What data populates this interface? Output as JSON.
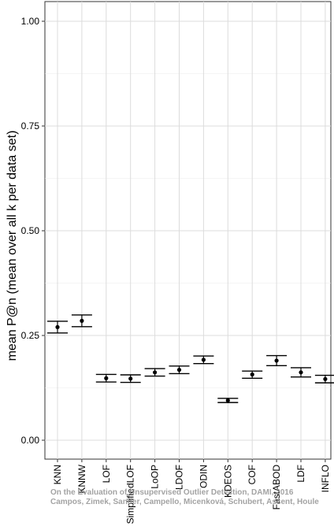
{
  "chart_data": {
    "type": "errorbar",
    "title": "",
    "xlabel": "",
    "ylabel": "mean P@n (mean over all k per data set)",
    "ylim": [
      0,
      1.05
    ],
    "yticks": [
      "0.00",
      "0.25",
      "0.50",
      "0.75",
      "1.00"
    ],
    "grid": true,
    "categories": [
      "KNN",
      "KNNW",
      "LOF",
      "SimplifiedLOF",
      "LoOP",
      "LDOF",
      "ODIN",
      "KDEOS",
      "COF",
      "FastABOD",
      "LDF",
      "INFLO"
    ],
    "values": [
      0.27,
      0.285,
      0.148,
      0.147,
      0.162,
      0.168,
      0.192,
      0.095,
      0.157,
      0.19,
      0.162,
      0.146
    ],
    "lower": [
      0.256,
      0.271,
      0.139,
      0.138,
      0.153,
      0.159,
      0.183,
      0.09,
      0.148,
      0.178,
      0.151,
      0.137
    ],
    "upper": [
      0.284,
      0.299,
      0.157,
      0.156,
      0.171,
      0.177,
      0.201,
      0.1,
      0.165,
      0.202,
      0.173,
      0.155
    ]
  },
  "watermark": {
    "line1": "On the Evaluation of Unsupervised Outlier Detection, DAMI, 2016",
    "line2": "Campos, Zimek, Sander, Campello, Micenková, Schubert, Assent, Houle"
  }
}
